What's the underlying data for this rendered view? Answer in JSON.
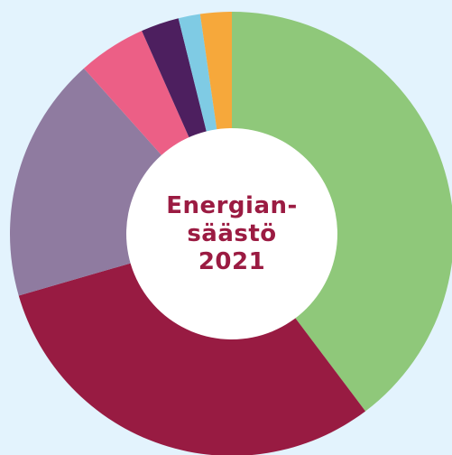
{
  "chart_data": {
    "type": "pie",
    "donut": true,
    "title_lines": [
      "Energian-",
      "säästö",
      "2021"
    ],
    "start_angle_deg": -90,
    "direction": "clockwise",
    "slices": [
      {
        "value": 40.0,
        "color": "#8fc87a"
      },
      {
        "value": 31.0,
        "color": "#981b42"
      },
      {
        "value": 18.0,
        "color": "#8f7ba0"
      },
      {
        "value": 5.0,
        "color": "#ec5f86"
      },
      {
        "value": 2.8,
        "color": "#4d1f5f"
      },
      {
        "value": 1.6,
        "color": "#7fcbe4"
      },
      {
        "value": 2.3,
        "color": "#f6a83b"
      }
    ]
  }
}
